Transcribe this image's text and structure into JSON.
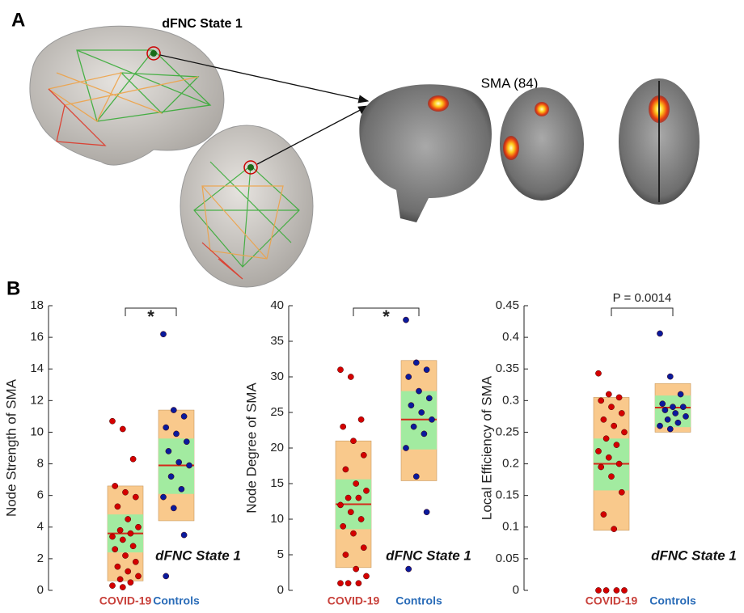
{
  "panel_a": {
    "label": "A",
    "title": "dFNC State 1",
    "region_label": "SMA (84)"
  },
  "panel_b": {
    "label": "B"
  },
  "chart_data": [
    {
      "type": "box",
      "y_label": "Node Strength of SMA",
      "annotation": "*",
      "state_label": "dFNC State 1",
      "categories": [
        "COVID-19",
        "Controls"
      ],
      "category_colors": [
        "#c8403a",
        "#2a6cb8"
      ],
      "ylim": [
        0,
        18
      ],
      "yticks": [
        0,
        2,
        4,
        6,
        8,
        10,
        12,
        14,
        16,
        18
      ],
      "box_color": "#f9c98c",
      "band_color": "#a2eba0",
      "mean_color": "#d42a1a",
      "series": [
        {
          "name": "COVID-19",
          "color": "#d40000",
          "mean": 3.6,
          "band": [
            2.4,
            4.8
          ],
          "box": [
            0.6,
            6.6
          ],
          "values": [
            10.7,
            10.2,
            8.3,
            6.6,
            6.2,
            5.9,
            5.3,
            4.5,
            4.0,
            3.8,
            3.6,
            3.4,
            3.2,
            2.8,
            2.6,
            2.2,
            1.8,
            1.5,
            1.2,
            0.9,
            0.7,
            0.5,
            0.3,
            0.2
          ]
        },
        {
          "name": "Controls",
          "color": "#0a1a9c",
          "mean": 7.9,
          "band": [
            6.1,
            9.6
          ],
          "box": [
            4.4,
            11.4
          ],
          "values": [
            16.2,
            11.4,
            11.0,
            10.3,
            9.9,
            9.4,
            8.8,
            8.1,
            7.9,
            7.2,
            6.4,
            5.9,
            5.2,
            3.5,
            0.9
          ]
        }
      ]
    },
    {
      "type": "box",
      "y_label": "Node Degree of SMA",
      "annotation": "*",
      "state_label": "dFNC State 1",
      "categories": [
        "COVID-19",
        "Controls"
      ],
      "category_colors": [
        "#c8403a",
        "#2a6cb8"
      ],
      "ylim": [
        0,
        40
      ],
      "yticks": [
        0,
        5,
        10,
        15,
        20,
        25,
        30,
        35,
        40
      ],
      "box_color": "#f9c98c",
      "band_color": "#a2eba0",
      "mean_color": "#d42a1a",
      "series": [
        {
          "name": "COVID-19",
          "color": "#d40000",
          "mean": 12.1,
          "band": [
            8.6,
            15.6
          ],
          "box": [
            3.2,
            21
          ],
          "values": [
            31,
            30,
            24,
            23,
            21,
            19,
            17,
            15,
            14,
            13,
            13,
            12,
            11,
            10,
            9,
            8,
            6,
            5,
            3,
            2,
            1,
            1,
            1
          ]
        },
        {
          "name": "Controls",
          "color": "#0a1a9c",
          "mean": 24,
          "band": [
            19.8,
            28
          ],
          "box": [
            15.4,
            32.3
          ],
          "values": [
            38,
            32,
            31,
            30,
            28,
            27,
            26,
            25,
            24,
            23,
            22,
            20,
            16,
            11,
            3
          ]
        }
      ]
    },
    {
      "type": "box",
      "y_label": "Local Efficiency of SMA",
      "annotation": "P = 0.0014",
      "state_label": "dFNC State 1",
      "categories": [
        "COVID-19",
        "Controls"
      ],
      "category_colors": [
        "#c8403a",
        "#2a6cb8"
      ],
      "ylim": [
        0,
        0.45
      ],
      "yticks": [
        0,
        0.05,
        0.1,
        0.15,
        0.2,
        0.25,
        0.3,
        0.35,
        0.4,
        0.45
      ],
      "box_color": "#f9c98c",
      "band_color": "#a2eba0",
      "mean_color": "#d42a1a",
      "series": [
        {
          "name": "COVID-19",
          "color": "#d40000",
          "mean": 0.2,
          "band": [
            0.158,
            0.24
          ],
          "box": [
            0.095,
            0.305
          ],
          "values": [
            0.343,
            0.31,
            0.305,
            0.3,
            0.29,
            0.28,
            0.27,
            0.26,
            0.25,
            0.24,
            0.23,
            0.22,
            0.21,
            0.2,
            0.195,
            0.18,
            0.155,
            0.12,
            0.097,
            0,
            0,
            0,
            0
          ]
        },
        {
          "name": "Controls",
          "color": "#0a1a9c",
          "mean": 0.289,
          "band": [
            0.258,
            0.308
          ],
          "box": [
            0.25,
            0.327
          ],
          "values": [
            0.406,
            0.338,
            0.31,
            0.295,
            0.29,
            0.29,
            0.285,
            0.28,
            0.275,
            0.27,
            0.265,
            0.26,
            0.255
          ]
        }
      ]
    }
  ]
}
